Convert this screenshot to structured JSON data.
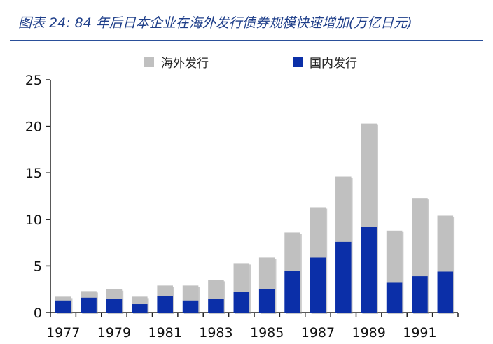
{
  "title": "图表 24: 84 年后日本企业在海外发行债券规模快速增加(万亿日元)",
  "colors": {
    "overseas": "#c0c0c0",
    "domestic": "#0b2fa8",
    "axis": "#222222",
    "title": "#1f3f8a"
  },
  "chart_data": {
    "type": "bar",
    "stacked": true,
    "title": "图表 24: 84 年后日本企业在海外发行债券规模快速增加(万亿日元)",
    "xlabel": "",
    "ylabel": "",
    "ylim": [
      0,
      25
    ],
    "yticks": [
      0,
      5,
      10,
      15,
      20,
      25
    ],
    "categories": [
      "1977",
      "1978",
      "1979",
      "1980",
      "1981",
      "1982",
      "1983",
      "1984",
      "1985",
      "1986",
      "1987",
      "1988",
      "1989",
      "1990",
      "1991",
      "1992"
    ],
    "x_tick_labels": [
      "1977",
      "1979",
      "1981",
      "1983",
      "1985",
      "1987",
      "1989",
      "1991"
    ],
    "legend_position": "top",
    "series": [
      {
        "name": "海外发行",
        "values": [
          0.4,
          0.7,
          1.0,
          0.8,
          1.1,
          1.6,
          2.0,
          3.1,
          3.4,
          4.1,
          5.4,
          7.0,
          11.1,
          5.6,
          8.4,
          6.0
        ]
      },
      {
        "name": "国内发行",
        "values": [
          1.3,
          1.6,
          1.5,
          0.9,
          1.8,
          1.3,
          1.5,
          2.2,
          2.5,
          4.5,
          5.9,
          7.6,
          9.2,
          3.2,
          3.9,
          4.4
        ]
      }
    ]
  }
}
